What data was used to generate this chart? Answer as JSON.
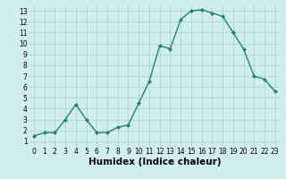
{
  "x": [
    0,
    1,
    2,
    3,
    4,
    5,
    6,
    7,
    8,
    9,
    10,
    11,
    12,
    13,
    14,
    15,
    16,
    17,
    18,
    19,
    20,
    21,
    22,
    23
  ],
  "y": [
    1.5,
    1.8,
    1.8,
    3.0,
    4.4,
    3.0,
    1.8,
    1.8,
    2.3,
    2.5,
    4.5,
    6.5,
    9.8,
    9.5,
    12.2,
    13.0,
    13.1,
    12.8,
    12.5,
    11.0,
    9.5,
    7.0,
    6.7,
    5.6
  ],
  "line_color": "#2d7d6e",
  "marker": "D",
  "marker_size": 2.0,
  "bg_color": "#d0eeee",
  "grid_color": "#b0d8d8",
  "xlabel": "Humidex (Indice chaleur)",
  "xlim": [
    -0.5,
    23.5
  ],
  "ylim": [
    0.5,
    13.5
  ],
  "yticks": [
    1,
    2,
    3,
    4,
    5,
    6,
    7,
    8,
    9,
    10,
    11,
    12,
    13
  ],
  "xticks": [
    0,
    1,
    2,
    3,
    4,
    5,
    6,
    7,
    8,
    9,
    10,
    11,
    12,
    13,
    14,
    15,
    16,
    17,
    18,
    19,
    20,
    21,
    22,
    23
  ],
  "tick_fontsize": 5.5,
  "xlabel_fontsize": 7.5,
  "line_width": 1.0
}
